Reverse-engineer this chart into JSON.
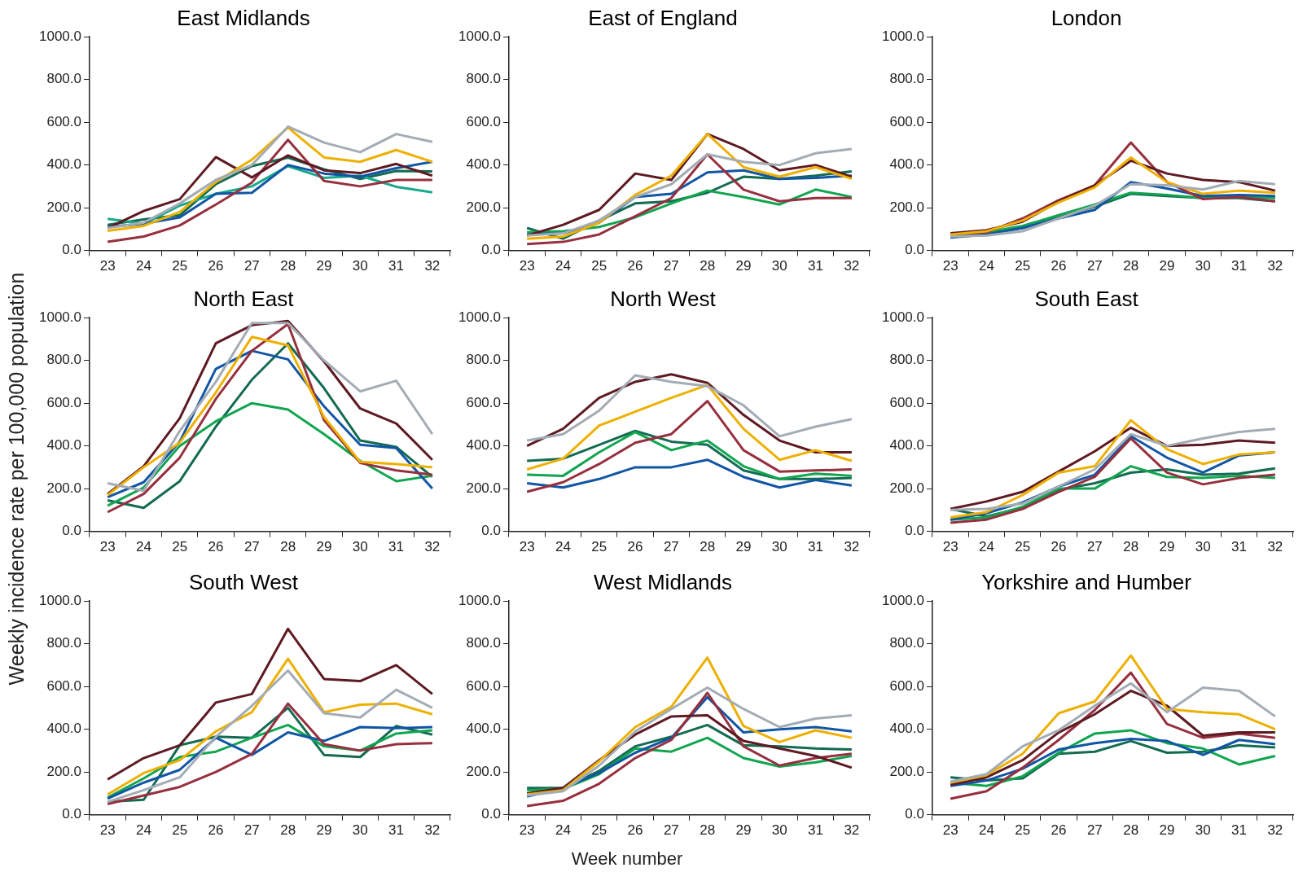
{
  "chart_data": [
    {
      "type": "line",
      "title": "East Midlands",
      "categories": [
        "23",
        "24",
        "25",
        "26",
        "27",
        "28",
        "29",
        "30",
        "31",
        "32"
      ],
      "ylim": [
        0,
        1000
      ],
      "yticks": [
        {
          "value": 0,
          "label": "0.0"
        },
        {
          "value": 200,
          "label": "200.0"
        },
        {
          "value": 400,
          "label": "400.0"
        },
        {
          "value": 600,
          "label": "600.0"
        },
        {
          "value": 800,
          "label": "800.0"
        },
        {
          "value": 1000,
          "label": "1000.0"
        }
      ],
      "legend": false,
      "series": [
        {
          "color": "#a3acb5",
          "values": [
            105,
            130,
            220,
            330,
            400,
            580,
            505,
            460,
            545,
            508
          ]
        },
        {
          "color": "#eeb000",
          "values": [
            92,
            115,
            180,
            320,
            425,
            575,
            435,
            415,
            470,
            415
          ]
        },
        {
          "color": "#5e1a22",
          "values": [
            105,
            185,
            240,
            437,
            342,
            445,
            375,
            362,
            405,
            350
          ]
        },
        {
          "color": "#96303f",
          "values": [
            40,
            65,
            117,
            215,
            318,
            518,
            325,
            300,
            330,
            330
          ]
        },
        {
          "color": "#1156a5",
          "values": [
            110,
            125,
            155,
            265,
            270,
            400,
            360,
            345,
            385,
            415
          ]
        },
        {
          "color": "#17a98c",
          "values": [
            148,
            125,
            210,
            265,
            300,
            395,
            340,
            350,
            298,
            272
          ]
        },
        {
          "color": "#136b52",
          "values": [
            120,
            145,
            165,
            310,
            395,
            435,
            380,
            335,
            372,
            370
          ]
        }
      ]
    },
    {
      "type": "line",
      "title": "East of England",
      "categories": [
        "23",
        "24",
        "25",
        "26",
        "27",
        "28",
        "29",
        "30",
        "31",
        "32"
      ],
      "ylim": [
        0,
        1000
      ],
      "yticks": [
        {
          "value": 0,
          "label": "0.0"
        },
        {
          "value": 200,
          "label": "200.0"
        },
        {
          "value": 400,
          "label": "400.0"
        },
        {
          "value": 600,
          "label": "600.0"
        },
        {
          "value": 800,
          "label": "800.0"
        },
        {
          "value": 1000,
          "label": "1000.0"
        }
      ],
      "legend": false,
      "series": [
        {
          "color": "#a3acb5",
          "values": [
            70,
            80,
            140,
            250,
            310,
            450,
            415,
            400,
            455,
            475
          ]
        },
        {
          "color": "#eeb000",
          "values": [
            55,
            65,
            130,
            260,
            350,
            545,
            390,
            345,
            390,
            335
          ]
        },
        {
          "color": "#5e1a22",
          "values": [
            70,
            120,
            190,
            360,
            330,
            545,
            475,
            375,
            400,
            345
          ]
        },
        {
          "color": "#96303f",
          "values": [
            30,
            40,
            75,
            160,
            245,
            450,
            285,
            230,
            245,
            245
          ]
        },
        {
          "color": "#1156a5",
          "values": [
            75,
            80,
            130,
            250,
            265,
            365,
            375,
            335,
            340,
            350
          ]
        },
        {
          "color": "#12a550",
          "values": [
            85,
            90,
            110,
            155,
            220,
            280,
            250,
            215,
            285,
            250
          ]
        },
        {
          "color": "#136b52",
          "values": [
            105,
            55,
            140,
            220,
            230,
            270,
            345,
            335,
            350,
            370
          ]
        }
      ]
    },
    {
      "type": "line",
      "title": "London",
      "categories": [
        "23",
        "24",
        "25",
        "26",
        "27",
        "28",
        "29",
        "30",
        "31",
        "32"
      ],
      "ylim": [
        0,
        1000
      ],
      "yticks": [
        {
          "value": 0,
          "label": "0.0"
        },
        {
          "value": 200,
          "label": "200.0"
        },
        {
          "value": 400,
          "label": "400.0"
        },
        {
          "value": 600,
          "label": "600.0"
        },
        {
          "value": 800,
          "label": "800.0"
        },
        {
          "value": 1000,
          "label": "1000.0"
        }
      ],
      "legend": false,
      "series": [
        {
          "color": "#a3acb5",
          "values": [
            65,
            70,
            90,
            150,
            210,
            310,
            305,
            285,
            325,
            310
          ]
        },
        {
          "color": "#eeb000",
          "values": [
            75,
            90,
            140,
            225,
            295,
            435,
            320,
            265,
            280,
            270
          ]
        },
        {
          "color": "#5e1a22",
          "values": [
            80,
            95,
            135,
            230,
            305,
            420,
            360,
            330,
            320,
            280
          ]
        },
        {
          "color": "#96303f",
          "values": [
            75,
            85,
            150,
            235,
            305,
            505,
            320,
            240,
            250,
            230
          ]
        },
        {
          "color": "#1156a5",
          "values": [
            60,
            75,
            105,
            150,
            190,
            320,
            290,
            255,
            260,
            255
          ]
        },
        {
          "color": "#12a550",
          "values": [
            75,
            85,
            115,
            165,
            215,
            270,
            260,
            245,
            250,
            245
          ]
        },
        {
          "color": "#136b52",
          "values": [
            75,
            80,
            105,
            155,
            205,
            265,
            255,
            245,
            245,
            230
          ]
        }
      ]
    },
    {
      "type": "line",
      "title": "North East",
      "ylabel": "Weekly incidence rate per 100,000 population",
      "categories": [
        "23",
        "24",
        "25",
        "26",
        "27",
        "28",
        "29",
        "30",
        "31",
        "32"
      ],
      "ylim": [
        0,
        1000
      ],
      "yticks": [
        {
          "value": 0,
          "label": "0.0"
        },
        {
          "value": 200,
          "label": "200.0"
        },
        {
          "value": 400,
          "label": "400.0"
        },
        {
          "value": 600,
          "label": "600.0"
        },
        {
          "value": 800,
          "label": "800.0"
        },
        {
          "value": 1000,
          "label": "1000.0"
        }
      ],
      "legend": false,
      "series": [
        {
          "color": "#a3acb5",
          "values": [
            225,
            190,
            470,
            700,
            975,
            975,
            800,
            655,
            705,
            455
          ]
        },
        {
          "color": "#eeb000",
          "values": [
            170,
            300,
            415,
            650,
            910,
            870,
            535,
            325,
            315,
            300
          ]
        },
        {
          "color": "#5e1a22",
          "values": [
            175,
            305,
            530,
            880,
            965,
            985,
            795,
            575,
            505,
            335
          ]
        },
        {
          "color": "#96303f",
          "values": [
            90,
            175,
            345,
            620,
            845,
            970,
            520,
            320,
            285,
            265
          ]
        },
        {
          "color": "#1156a5",
          "values": [
            160,
            230,
            420,
            760,
            845,
            805,
            585,
            405,
            390,
            200
          ]
        },
        {
          "color": "#12a550",
          "values": [
            120,
            205,
            400,
            515,
            600,
            570,
            455,
            330,
            235,
            260
          ]
        },
        {
          "color": "#136b52",
          "values": [
            145,
            110,
            235,
            490,
            710,
            880,
            670,
            425,
            395,
            255
          ]
        }
      ]
    },
    {
      "type": "line",
      "title": "North West",
      "categories": [
        "23",
        "24",
        "25",
        "26",
        "27",
        "28",
        "29",
        "30",
        "31",
        "32"
      ],
      "ylim": [
        0,
        1000
      ],
      "yticks": [
        {
          "value": 0,
          "label": "0.0"
        },
        {
          "value": 200,
          "label": "200.0"
        },
        {
          "value": 400,
          "label": "400.0"
        },
        {
          "value": 600,
          "label": "600.0"
        },
        {
          "value": 800,
          "label": "800.0"
        },
        {
          "value": 1000,
          "label": "1000.0"
        }
      ],
      "legend": false,
      "series": [
        {
          "color": "#a3acb5",
          "values": [
            425,
            455,
            565,
            730,
            700,
            680,
            590,
            445,
            490,
            525
          ]
        },
        {
          "color": "#eeb000",
          "values": [
            290,
            340,
            495,
            560,
            625,
            685,
            480,
            335,
            380,
            330
          ]
        },
        {
          "color": "#5e1a22",
          "values": [
            400,
            480,
            625,
            700,
            735,
            695,
            545,
            425,
            370,
            370
          ]
        },
        {
          "color": "#96303f",
          "values": [
            185,
            230,
            315,
            415,
            455,
            610,
            380,
            280,
            285,
            290
          ]
        },
        {
          "color": "#1156a5",
          "values": [
            225,
            205,
            245,
            300,
            300,
            335,
            255,
            205,
            240,
            215
          ]
        },
        {
          "color": "#12a550",
          "values": [
            265,
            260,
            370,
            465,
            380,
            425,
            305,
            245,
            270,
            260
          ]
        },
        {
          "color": "#136b52",
          "values": [
            330,
            340,
            405,
            470,
            420,
            405,
            285,
            245,
            245,
            250
          ]
        }
      ]
    },
    {
      "type": "line",
      "title": "South East",
      "categories": [
        "23",
        "24",
        "25",
        "26",
        "27",
        "28",
        "29",
        "30",
        "31",
        "32"
      ],
      "ylim": [
        0,
        1000
      ],
      "yticks": [
        {
          "value": 0,
          "label": "0.0"
        },
        {
          "value": 200,
          "label": "200.0"
        },
        {
          "value": 400,
          "label": "400.0"
        },
        {
          "value": 600,
          "label": "600.0"
        },
        {
          "value": 800,
          "label": "800.0"
        },
        {
          "value": 1000,
          "label": "1000.0"
        }
      ],
      "legend": false,
      "series": [
        {
          "color": "#a3acb5",
          "values": [
            100,
            105,
            130,
            210,
            290,
            455,
            400,
            435,
            465,
            480
          ]
        },
        {
          "color": "#eeb000",
          "values": [
            65,
            90,
            170,
            275,
            305,
            520,
            385,
            315,
            360,
            370
          ]
        },
        {
          "color": "#5e1a22",
          "values": [
            105,
            140,
            185,
            280,
            375,
            485,
            400,
            405,
            425,
            415
          ]
        },
        {
          "color": "#96303f",
          "values": [
            40,
            55,
            105,
            185,
            255,
            435,
            275,
            220,
            250,
            265
          ]
        },
        {
          "color": "#1156a5",
          "values": [
            55,
            85,
            135,
            210,
            265,
            445,
            345,
            275,
            355,
            370
          ]
        },
        {
          "color": "#12a550",
          "values": [
            55,
            65,
            115,
            200,
            200,
            305,
            255,
            250,
            260,
            250
          ]
        },
        {
          "color": "#136b52",
          "values": [
            105,
            70,
            110,
            195,
            225,
            275,
            290,
            265,
            270,
            295
          ]
        }
      ]
    },
    {
      "type": "line",
      "title": "South West",
      "categories": [
        "23",
        "24",
        "25",
        "26",
        "27",
        "28",
        "29",
        "30",
        "31",
        "32"
      ],
      "ylim": [
        0,
        1000
      ],
      "yticks": [
        {
          "value": 0,
          "label": "0.0"
        },
        {
          "value": 200,
          "label": "200.0"
        },
        {
          "value": 400,
          "label": "400.0"
        },
        {
          "value": 600,
          "label": "600.0"
        },
        {
          "value": 800,
          "label": "800.0"
        },
        {
          "value": 1000,
          "label": "1000.0"
        }
      ],
      "legend": false,
      "series": [
        {
          "color": "#a3acb5",
          "values": [
            60,
            115,
            175,
            365,
            510,
            675,
            475,
            455,
            585,
            500
          ]
        },
        {
          "color": "#eeb000",
          "values": [
            95,
            195,
            255,
            390,
            480,
            730,
            480,
            515,
            520,
            470
          ]
        },
        {
          "color": "#5e1a22",
          "values": [
            165,
            265,
            325,
            525,
            565,
            870,
            635,
            625,
            700,
            565
          ]
        },
        {
          "color": "#96303f",
          "values": [
            50,
            90,
            130,
            200,
            285,
            520,
            330,
            300,
            330,
            335
          ]
        },
        {
          "color": "#1156a5",
          "values": [
            75,
            150,
            210,
            360,
            280,
            385,
            345,
            410,
            405,
            410
          ]
        },
        {
          "color": "#12a550",
          "values": [
            80,
            170,
            270,
            295,
            360,
            420,
            320,
            300,
            380,
            395
          ]
        },
        {
          "color": "#136b52",
          "values": [
            60,
            70,
            325,
            365,
            360,
            500,
            280,
            270,
            415,
            375
          ]
        }
      ]
    },
    {
      "type": "line",
      "title": "West Midlands",
      "xlabel": "Week number",
      "categories": [
        "23",
        "24",
        "25",
        "26",
        "27",
        "28",
        "29",
        "30",
        "31",
        "32"
      ],
      "ylim": [
        0,
        1000
      ],
      "yticks": [
        {
          "value": 0,
          "label": "0.0"
        },
        {
          "value": 200,
          "label": "200.0"
        },
        {
          "value": 400,
          "label": "400.0"
        },
        {
          "value": 600,
          "label": "600.0"
        },
        {
          "value": 800,
          "label": "800.0"
        },
        {
          "value": 1000,
          "label": "1000.0"
        }
      ],
      "legend": false,
      "series": [
        {
          "color": "#a3acb5",
          "values": [
            90,
            110,
            230,
            390,
            495,
            595,
            495,
            410,
            450,
            465
          ]
        },
        {
          "color": "#eeb000",
          "values": [
            95,
            115,
            250,
            410,
            505,
            735,
            415,
            340,
            395,
            360
          ]
        },
        {
          "color": "#5e1a22",
          "values": [
            100,
            125,
            255,
            375,
            460,
            465,
            345,
            310,
            275,
            220
          ]
        },
        {
          "color": "#96303f",
          "values": [
            40,
            65,
            145,
            265,
            350,
            570,
            320,
            230,
            265,
            285
          ]
        },
        {
          "color": "#1156a5",
          "values": [
            85,
            125,
            195,
            290,
            360,
            550,
            385,
            400,
            410,
            390
          ]
        },
        {
          "color": "#12a550",
          "values": [
            115,
            120,
            190,
            310,
            295,
            360,
            265,
            225,
            245,
            275
          ]
        },
        {
          "color": "#136b52",
          "values": [
            125,
            125,
            205,
            320,
            365,
            420,
            325,
            320,
            310,
            305
          ]
        }
      ]
    },
    {
      "type": "line",
      "title": "Yorkshire and Humber",
      "categories": [
        "23",
        "24",
        "25",
        "26",
        "27",
        "28",
        "29",
        "30",
        "31",
        "32"
      ],
      "ylim": [
        0,
        1000
      ],
      "yticks": [
        {
          "value": 0,
          "label": "0.0"
        },
        {
          "value": 200,
          "label": "200.0"
        },
        {
          "value": 400,
          "label": "400.0"
        },
        {
          "value": 600,
          "label": "600.0"
        },
        {
          "value": 800,
          "label": "800.0"
        },
        {
          "value": 1000,
          "label": "1000.0"
        }
      ],
      "legend": false,
      "series": [
        {
          "color": "#a3acb5",
          "values": [
            155,
            190,
            320,
            395,
            510,
            615,
            480,
            595,
            580,
            460
          ]
        },
        {
          "color": "#eeb000",
          "values": [
            150,
            185,
            285,
            475,
            530,
            745,
            495,
            480,
            470,
            400
          ]
        },
        {
          "color": "#5e1a22",
          "values": [
            140,
            175,
            255,
            385,
            470,
            580,
            510,
            370,
            385,
            385
          ]
        },
        {
          "color": "#96303f",
          "values": [
            75,
            110,
            220,
            350,
            490,
            665,
            425,
            360,
            380,
            360
          ]
        },
        {
          "color": "#1156a5",
          "values": [
            135,
            160,
            215,
            305,
            335,
            355,
            345,
            280,
            350,
            330
          ]
        },
        {
          "color": "#12a550",
          "values": [
            150,
            135,
            180,
            290,
            380,
            395,
            335,
            310,
            235,
            275
          ]
        },
        {
          "color": "#136b52",
          "values": [
            175,
            160,
            170,
            285,
            295,
            345,
            290,
            295,
            325,
            315
          ]
        }
      ]
    }
  ]
}
